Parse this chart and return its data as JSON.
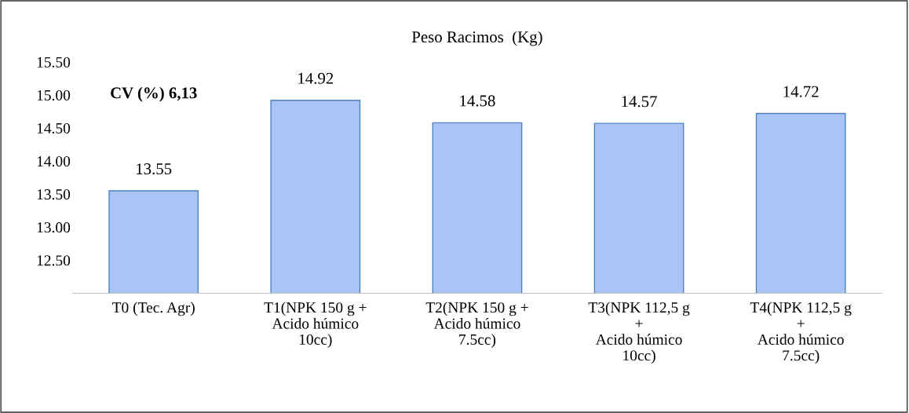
{
  "chart_data": {
    "type": "bar",
    "title": "Peso Racimos  (Kg)",
    "categories": [
      "T0 (Tec. Agr)",
      "T1(NPK 150 g +\nAcido húmico\n10cc)",
      "T2(NPK 150 g +\nAcido húmico\n7.5cc)",
      "T3(NPK 112,5 g\n+\nAcido húmico\n10cc)",
      "T4(NPK 112,5 g\n+\nAcido húmico\n7.5cc)"
    ],
    "values": [
      13.55,
      14.92,
      14.58,
      14.57,
      14.72
    ],
    "color": "#a9c4f5",
    "ylim": [
      12.0,
      15.5
    ],
    "yticks": [
      {
        "value": 12.5,
        "label": "12.50"
      },
      {
        "value": 13.0,
        "label": "13.00"
      },
      {
        "value": 13.5,
        "label": "13.50"
      },
      {
        "value": 14.0,
        "label": "14.00"
      },
      {
        "value": 14.5,
        "label": "14.50"
      },
      {
        "value": 15.0,
        "label": "15.00"
      },
      {
        "value": 15.5,
        "label": "15.50"
      }
    ],
    "data_labels": true,
    "grid": false,
    "legend": false,
    "annotations": [
      "CV (%) 6,13"
    ]
  }
}
